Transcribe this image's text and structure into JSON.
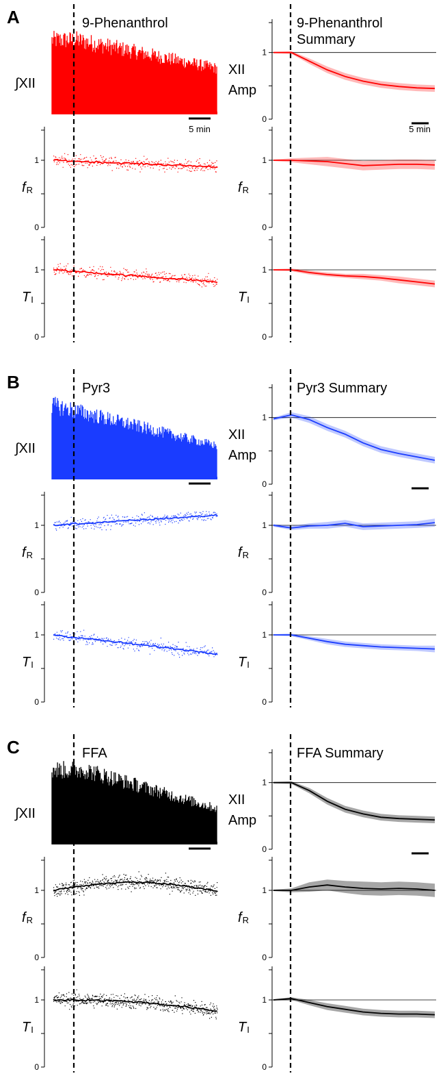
{
  "colors": {
    "A": "#ff0000",
    "B": "#1a3cff",
    "C": "#000000"
  },
  "panels": [
    {
      "letter": "A",
      "key": "A",
      "left_title": "9-Phenanthrol",
      "right_title_lines": [
        "9-Phenanthrol",
        "Summary"
      ],
      "scalebar_text": "5 min",
      "show_scalebar_text": true
    },
    {
      "letter": "B",
      "key": "B",
      "left_title": "Pyr3",
      "right_title_lines": [
        "Pyr3 Summary"
      ],
      "scalebar_text": "",
      "show_scalebar_text": false
    },
    {
      "letter": "C",
      "key": "C",
      "left_title": "FFA",
      "right_title_lines": [
        "FFA Summary"
      ],
      "scalebar_text": "",
      "show_scalebar_text": false
    }
  ],
  "labels": {
    "integral_xii": "∫XII",
    "xii_amp_line1": "XII",
    "xii_amp_line2": "Amp",
    "fr_main": "f",
    "fr_sub": "R",
    "ti_main": "T",
    "ti_sub": "I",
    "tick_0": "0",
    "tick_1": "1"
  },
  "chart_data": [
    {
      "panel": "A",
      "type": "line",
      "title": "9-Phenanthrol Summary",
      "ylabel": "XII Amp",
      "ylim": [
        0,
        1.5
      ],
      "x": [
        0,
        4,
        8,
        12,
        16,
        20,
        24,
        28,
        32,
        36
      ],
      "series": [
        {
          "values": [
            1.0,
            1.0,
            0.87,
            0.74,
            0.64,
            0.57,
            0.52,
            0.49,
            0.47,
            0.46
          ],
          "sem": [
            0.01,
            0.02,
            0.04,
            0.05,
            0.05,
            0.05,
            0.05,
            0.05,
            0.05,
            0.05
          ]
        }
      ]
    },
    {
      "panel": "A",
      "type": "line",
      "ylabel": "fR",
      "ylim": [
        0,
        1.5
      ],
      "x": [
        0,
        4,
        8,
        12,
        16,
        20,
        24,
        28,
        32,
        36
      ],
      "series": [
        {
          "values": [
            1.0,
            1.0,
            0.99,
            0.98,
            0.95,
            0.92,
            0.93,
            0.94,
            0.94,
            0.93
          ],
          "sem": [
            0.01,
            0.03,
            0.05,
            0.07,
            0.07,
            0.07,
            0.07,
            0.07,
            0.07,
            0.07
          ]
        }
      ]
    },
    {
      "panel": "A",
      "type": "line",
      "ylabel": "TI",
      "ylim": [
        0,
        1.5
      ],
      "x": [
        0,
        4,
        8,
        12,
        16,
        20,
        24,
        28,
        32,
        36
      ],
      "series": [
        {
          "values": [
            1.0,
            1.0,
            0.96,
            0.93,
            0.91,
            0.9,
            0.88,
            0.85,
            0.82,
            0.79
          ],
          "sem": [
            0.01,
            0.02,
            0.03,
            0.03,
            0.03,
            0.04,
            0.04,
            0.05,
            0.05,
            0.05
          ]
        }
      ]
    },
    {
      "panel": "B",
      "type": "line",
      "title": "Pyr3 Summary",
      "ylabel": "XII Amp",
      "ylim": [
        0,
        1.5
      ],
      "x": [
        0,
        4,
        8,
        12,
        16,
        20,
        24,
        28,
        32,
        36
      ],
      "series": [
        {
          "values": [
            0.98,
            1.04,
            0.97,
            0.85,
            0.75,
            0.62,
            0.52,
            0.46,
            0.41,
            0.36
          ],
          "sem": [
            0.02,
            0.04,
            0.05,
            0.05,
            0.05,
            0.05,
            0.05,
            0.05,
            0.05,
            0.05
          ]
        }
      ]
    },
    {
      "panel": "B",
      "type": "line",
      "ylabel": "fR",
      "ylim": [
        0,
        1.5
      ],
      "x": [
        0,
        4,
        8,
        12,
        16,
        20,
        24,
        28,
        32,
        36
      ],
      "series": [
        {
          "values": [
            1.0,
            0.96,
            0.99,
            1.0,
            1.03,
            0.98,
            0.99,
            1.0,
            1.01,
            1.04
          ],
          "sem": [
            0.02,
            0.03,
            0.04,
            0.05,
            0.05,
            0.05,
            0.05,
            0.05,
            0.05,
            0.06
          ]
        }
      ]
    },
    {
      "panel": "B",
      "type": "line",
      "ylabel": "TI",
      "ylim": [
        0,
        1.5
      ],
      "x": [
        0,
        4,
        8,
        12,
        16,
        20,
        24,
        28,
        32,
        36
      ],
      "series": [
        {
          "values": [
            1.0,
            1.0,
            0.95,
            0.9,
            0.86,
            0.84,
            0.82,
            0.81,
            0.8,
            0.79
          ],
          "sem": [
            0.01,
            0.02,
            0.03,
            0.04,
            0.04,
            0.04,
            0.04,
            0.04,
            0.04,
            0.05
          ]
        }
      ]
    },
    {
      "panel": "C",
      "type": "line",
      "title": "FFA Summary",
      "ylabel": "XII Amp",
      "ylim": [
        0,
        1.5
      ],
      "x": [
        0,
        4,
        8,
        12,
        16,
        20,
        24,
        28,
        32,
        36
      ],
      "series": [
        {
          "values": [
            1.0,
            1.0,
            0.88,
            0.72,
            0.6,
            0.53,
            0.48,
            0.46,
            0.45,
            0.44
          ],
          "sem": [
            0.01,
            0.02,
            0.04,
            0.05,
            0.05,
            0.05,
            0.05,
            0.05,
            0.05,
            0.05
          ]
        }
      ]
    },
    {
      "panel": "C",
      "type": "line",
      "ylabel": "fR",
      "ylim": [
        0,
        1.5
      ],
      "x": [
        0,
        4,
        8,
        12,
        16,
        20,
        24,
        28,
        32,
        36
      ],
      "series": [
        {
          "values": [
            1.0,
            1.0,
            1.05,
            1.08,
            1.05,
            1.03,
            1.02,
            1.03,
            1.02,
            1.0
          ],
          "sem": [
            0.01,
            0.03,
            0.07,
            0.08,
            0.09,
            0.1,
            0.1,
            0.1,
            0.1,
            0.1
          ]
        }
      ]
    },
    {
      "panel": "C",
      "type": "line",
      "ylabel": "TI",
      "ylim": [
        0,
        1.5
      ],
      "x": [
        0,
        4,
        8,
        12,
        16,
        20,
        24,
        28,
        32,
        36
      ],
      "series": [
        {
          "values": [
            1.0,
            1.02,
            0.96,
            0.9,
            0.86,
            0.82,
            0.8,
            0.79,
            0.79,
            0.78
          ],
          "sem": [
            0.01,
            0.02,
            0.04,
            0.05,
            0.05,
            0.05,
            0.05,
            0.05,
            0.05,
            0.05
          ]
        }
      ]
    }
  ]
}
